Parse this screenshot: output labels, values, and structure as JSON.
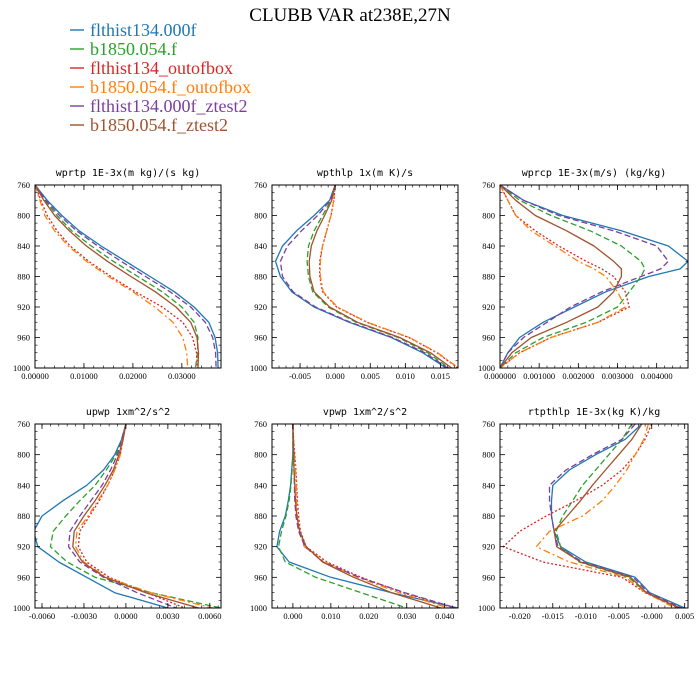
{
  "figure": {
    "title": "CLUBB VAR at238E,27N"
  },
  "legend": [
    {
      "name": "flthist134.000f",
      "color": "#1f77b4",
      "dash": "solid"
    },
    {
      "name": "b1850.054.f",
      "color": "#2ca02c",
      "dash": "dash"
    },
    {
      "name": "flthist134_outofbox",
      "color": "#d62728",
      "dash": "dot"
    },
    {
      "name": "b1850.054.f_outofbox",
      "color": "#ff7f0e",
      "dash": "dashdot"
    },
    {
      "name": "flthist134.000f_ztest2",
      "color": "#7b3f9e",
      "dash": "dash"
    },
    {
      "name": "b1850.054.f_ztest2",
      "color": "#a0522d",
      "dash": "solid"
    }
  ],
  "chart_data": [
    {
      "type": "line",
      "title": "wprtp  1E-3x(m kg)/(s kg)",
      "xlim": [
        0,
        0.038
      ],
      "ylim": [
        760,
        1000
      ],
      "y_reversed": true,
      "xticks": [
        "0.00000",
        "0.01000",
        "0.02000",
        "0.03000"
      ],
      "xtick_values": [
        0,
        0.01,
        0.02,
        0.03
      ],
      "yticks": [
        760,
        800,
        840,
        880,
        920,
        960,
        1000
      ],
      "y": [
        760,
        780,
        800,
        820,
        840,
        860,
        880,
        900,
        920,
        940,
        960,
        980,
        1000
      ],
      "series": [
        {
          "name": "flthist134.000f",
          "values": [
            0,
            0.0025,
            0.0055,
            0.009,
            0.0135,
            0.0185,
            0.0235,
            0.0285,
            0.0325,
            0.0355,
            0.0368,
            0.0373,
            0.0374
          ]
        },
        {
          "name": "b1850.054.f",
          "values": [
            0,
            0.002,
            0.0045,
            0.0075,
            0.0115,
            0.016,
            0.021,
            0.026,
            0.03,
            0.0325,
            0.0333,
            0.0332,
            0.0328
          ]
        },
        {
          "name": "flthist134_outofbox",
          "values": [
            0,
            0.0012,
            0.0025,
            0.0045,
            0.0072,
            0.011,
            0.0155,
            0.0205,
            0.026,
            0.0302,
            0.0322,
            0.033,
            0.0332
          ]
        },
        {
          "name": "b1850.054.f_outofbox",
          "values": [
            0,
            0.001,
            0.002,
            0.004,
            0.0068,
            0.0105,
            0.015,
            0.02,
            0.0245,
            0.0282,
            0.0302,
            0.031,
            0.0312
          ]
        },
        {
          "name": "flthist134.000f_ztest2",
          "values": [
            0,
            0.0022,
            0.005,
            0.0085,
            0.0128,
            0.0176,
            0.0226,
            0.0276,
            0.0318,
            0.0348,
            0.0363,
            0.0369,
            0.037
          ]
        },
        {
          "name": "b1850.054.f_ztest2",
          "values": [
            0,
            0.0018,
            0.004,
            0.007,
            0.0105,
            0.0148,
            0.0196,
            0.0246,
            0.0288,
            0.0318,
            0.0331,
            0.0334,
            0.0333
          ]
        }
      ]
    },
    {
      "type": "line",
      "title": "wpthlp  1x(m K)/s",
      "xlim": [
        -0.009,
        0.0175
      ],
      "ylim": [
        760,
        1000
      ],
      "y_reversed": true,
      "xticks": [
        "-0.005",
        "0.000",
        "0.005",
        "0.010",
        "0.015"
      ],
      "xtick_values": [
        -0.005,
        0,
        0.005,
        0.01,
        0.015
      ],
      "yticks": [
        760,
        800,
        840,
        880,
        920,
        960,
        1000
      ],
      "y": [
        760,
        780,
        800,
        820,
        840,
        860,
        880,
        900,
        920,
        940,
        960,
        980,
        1000
      ],
      "series": [
        {
          "name": "flthist134.000f",
          "values": [
            0,
            -0.0008,
            -0.003,
            -0.0055,
            -0.0075,
            -0.0085,
            -0.0078,
            -0.0062,
            -0.003,
            0.002,
            0.008,
            0.0125,
            0.0158
          ]
        },
        {
          "name": "b1850.054.f",
          "values": [
            0,
            -0.0006,
            -0.0018,
            -0.003,
            -0.0038,
            -0.004,
            -0.0038,
            -0.0032,
            -0.001,
            0.003,
            0.009,
            0.0132,
            0.0162
          ]
        },
        {
          "name": "flthist134_outofbox",
          "values": [
            0,
            -0.0002,
            -0.0006,
            -0.0012,
            -0.0018,
            -0.0022,
            -0.0022,
            -0.0018,
            0.0002,
            0.0045,
            0.0105,
            0.0145,
            0.0175
          ]
        },
        {
          "name": "b1850.054.f_outofbox",
          "values": [
            0,
            -0.0002,
            -0.0006,
            -0.0012,
            -0.0018,
            -0.0021,
            -0.0021,
            -0.0017,
            0.0003,
            0.0046,
            0.0106,
            0.0146,
            0.0176
          ]
        },
        {
          "name": "flthist134.000f_ztest2",
          "values": [
            0,
            -0.0007,
            -0.0025,
            -0.0048,
            -0.0068,
            -0.0078,
            -0.0075,
            -0.006,
            -0.0028,
            0.0022,
            0.0082,
            0.0128,
            0.016
          ]
        },
        {
          "name": "b1850.054.f_ztest2",
          "values": [
            0,
            -0.0005,
            -0.0015,
            -0.0026,
            -0.0034,
            -0.0037,
            -0.0036,
            -0.003,
            -0.0008,
            0.0032,
            0.0092,
            0.0136,
            0.0166
          ]
        }
      ]
    },
    {
      "type": "line",
      "title": "wprcp  1E-3x(m/s) (kg/kg)",
      "xlim": [
        0,
        0.0048
      ],
      "ylim": [
        760,
        1000
      ],
      "y_reversed": true,
      "xticks": [
        "0.000000",
        "0.001000",
        "0.002000",
        "0.003000",
        "0.004000"
      ],
      "xtick_values": [
        0,
        0.001,
        0.002,
        0.003,
        0.004
      ],
      "yticks": [
        760,
        800,
        840,
        880,
        920,
        960,
        1000
      ],
      "y": [
        760,
        780,
        800,
        820,
        840,
        860,
        870,
        880,
        900,
        920,
        940,
        960,
        980,
        1000
      ],
      "series": [
        {
          "name": "flthist134.000f",
          "values": [
            0,
            0.0006,
            0.0016,
            0.0031,
            0.0043,
            0.0048,
            0.0046,
            0.0038,
            0.0027,
            0.0019,
            0.0011,
            0.0005,
            0.0002,
            0
          ]
        },
        {
          "name": "b1850.054.f",
          "values": [
            0,
            0.0005,
            0.0013,
            0.0023,
            0.0031,
            0.0036,
            0.0037,
            0.0036,
            0.0033,
            0.003,
            0.0022,
            0.0011,
            0.0004,
            0
          ]
        },
        {
          "name": "flthist134_outofbox",
          "values": [
            0,
            0.0002,
            0.0004,
            0.0009,
            0.0015,
            0.0022,
            0.0026,
            0.0029,
            0.0032,
            0.0033,
            0.0025,
            0.0013,
            0.0005,
            0
          ]
        },
        {
          "name": "b1850.054.f_outofbox",
          "values": [
            0,
            0.0002,
            0.0004,
            0.0008,
            0.0014,
            0.002,
            0.0024,
            0.0027,
            0.003,
            0.0032,
            0.0025,
            0.0013,
            0.0005,
            0
          ]
        },
        {
          "name": "flthist134.000f_ztest2",
          "values": [
            0,
            0.0006,
            0.0015,
            0.0029,
            0.004,
            0.0043,
            0.0041,
            0.0036,
            0.0026,
            0.0018,
            0.0012,
            0.0006,
            0.0002,
            0
          ]
        },
        {
          "name": "b1850.054.f_ztest2",
          "values": [
            0,
            0.0004,
            0.0009,
            0.0017,
            0.0024,
            0.0029,
            0.0031,
            0.0031,
            0.0029,
            0.0025,
            0.0017,
            0.0008,
            0.0003,
            0
          ]
        }
      ]
    },
    {
      "type": "line",
      "title": "upwp  1xm^2/s^2",
      "xlim": [
        -0.0065,
        0.0068
      ],
      "ylim": [
        760,
        1000
      ],
      "y_reversed": true,
      "xticks": [
        "-0.0060",
        "-0.0030",
        "0.0000",
        "0.0030",
        "0.0060"
      ],
      "xtick_values": [
        -0.006,
        -0.003,
        0,
        0.003,
        0.006
      ],
      "yticks": [
        760,
        800,
        840,
        880,
        920,
        960,
        1000
      ],
      "y": [
        760,
        780,
        800,
        820,
        840,
        860,
        880,
        900,
        920,
        940,
        960,
        980,
        1000
      ],
      "series": [
        {
          "name": "flthist134.000f",
          "values": [
            0,
            -0.0003,
            -0.0008,
            -0.0016,
            -0.0028,
            -0.0045,
            -0.006,
            -0.0066,
            -0.0063,
            -0.0048,
            -0.0028,
            -0.0008,
            0.003
          ]
        },
        {
          "name": "b1850.054.f",
          "values": [
            0,
            -0.0003,
            -0.0007,
            -0.0014,
            -0.0022,
            -0.0033,
            -0.0043,
            -0.0052,
            -0.0054,
            -0.0042,
            -0.0022,
            0.0018,
            0.0068
          ]
        },
        {
          "name": "flthist134_outofbox",
          "values": [
            0,
            -0.0002,
            -0.0004,
            -0.0008,
            -0.0013,
            -0.0019,
            -0.0026,
            -0.0033,
            -0.0034,
            -0.0028,
            -0.0012,
            0.0015,
            0.0042
          ]
        },
        {
          "name": "b1850.054.f_outofbox",
          "values": [
            0,
            -0.0002,
            -0.0004,
            -0.0008,
            -0.0013,
            -0.002,
            -0.0027,
            -0.0035,
            -0.0036,
            -0.003,
            -0.0014,
            0.0018,
            0.0062
          ]
        },
        {
          "name": "flthist134.000f_ztest2",
          "values": [
            0,
            -0.0003,
            -0.0006,
            -0.0011,
            -0.0017,
            -0.0025,
            -0.0033,
            -0.004,
            -0.0041,
            -0.0033,
            -0.0016,
            0.0008,
            0.0036
          ]
        },
        {
          "name": "b1850.054.f_ztest2",
          "values": [
            0,
            -0.0002,
            -0.0005,
            -0.0009,
            -0.0015,
            -0.0022,
            -0.003,
            -0.0037,
            -0.0038,
            -0.0031,
            -0.0015,
            0.0014,
            0.0052
          ]
        }
      ]
    },
    {
      "type": "line",
      "title": "vpwp  1xm^2/s^2",
      "xlim": [
        -0.0055,
        0.0435
      ],
      "ylim": [
        760,
        1000
      ],
      "y_reversed": true,
      "xticks": [
        "0.000",
        "0.010",
        "0.020",
        "0.030",
        "0.040"
      ],
      "xtick_values": [
        0,
        0.01,
        0.02,
        0.03,
        0.04
      ],
      "yticks": [
        760,
        800,
        840,
        880,
        920,
        960,
        1000
      ],
      "y": [
        760,
        780,
        800,
        820,
        840,
        860,
        880,
        900,
        920,
        940,
        960,
        980,
        1000
      ],
      "series": [
        {
          "name": "flthist134.000f",
          "values": [
            0,
            0,
            0,
            -0.0003,
            -0.0006,
            -0.0012,
            -0.002,
            -0.0035,
            -0.0042,
            -0.001,
            0.01,
            0.026,
            0.0435
          ]
        },
        {
          "name": "b1850.054.f",
          "values": [
            0,
            0,
            0,
            -0.0002,
            -0.0005,
            -0.001,
            -0.0018,
            -0.003,
            -0.0038,
            -0.002,
            0.006,
            0.018,
            0.03
          ]
        },
        {
          "name": "flthist134_outofbox",
          "values": [
            0,
            0.0002,
            0.0005,
            0.0008,
            0.001,
            0.0012,
            0.0015,
            0.002,
            0.0035,
            0.009,
            0.018,
            0.029,
            0.0425
          ]
        },
        {
          "name": "b1850.054.f_outofbox",
          "values": [
            0,
            0.0002,
            0.0004,
            0.0007,
            0.0009,
            0.001,
            0.0012,
            0.0018,
            0.003,
            0.0085,
            0.017,
            0.028,
            0.041
          ]
        },
        {
          "name": "flthist134.000f_ztest2",
          "values": [
            0,
            0.0001,
            0.0002,
            0.0003,
            0.0004,
            0.0005,
            0.0008,
            0.0015,
            0.0032,
            0.008,
            0.0175,
            0.0295,
            0.043
          ]
        },
        {
          "name": "b1850.054.f_ztest2",
          "values": [
            0,
            0.0001,
            0.0002,
            0.0003,
            0.0005,
            0.0007,
            0.001,
            0.0018,
            0.0035,
            0.0078,
            0.016,
            0.026,
            0.039
          ]
        }
      ]
    },
    {
      "type": "line",
      "title": "rtpthlp  1E-3x(kg K)/kg",
      "xlim": [
        -0.023,
        0.0055
      ],
      "ylim": [
        760,
        1000
      ],
      "y_reversed": true,
      "xticks": [
        "-0.020",
        "-0.015",
        "-0.010",
        "-0.005",
        "-0.000",
        "0.005"
      ],
      "xtick_values": [
        -0.02,
        -0.015,
        -0.01,
        -0.005,
        0,
        0.005
      ],
      "yticks": [
        760,
        800,
        840,
        880,
        920,
        960,
        1000
      ],
      "y": [
        760,
        780,
        800,
        820,
        840,
        860,
        880,
        900,
        920,
        940,
        960,
        980,
        1000
      ],
      "series": [
        {
          "name": "flthist134.000f",
          "values": [
            -0.0015,
            -0.004,
            -0.0085,
            -0.0125,
            -0.015,
            -0.0152,
            -0.0152,
            -0.0148,
            -0.0138,
            -0.01,
            -0.0025,
            -0.0003,
            0.005
          ]
        },
        {
          "name": "b1850.054.f",
          "values": [
            -0.003,
            -0.0045,
            -0.0065,
            -0.0085,
            -0.0105,
            -0.012,
            -0.0135,
            -0.0145,
            -0.0138,
            -0.011,
            -0.0035,
            -0.0008,
            0.004
          ]
        },
        {
          "name": "flthist134_outofbox",
          "values": [
            0,
            -0.001,
            -0.0025,
            -0.0045,
            -0.0075,
            -0.0115,
            -0.016,
            -0.02,
            -0.0225,
            -0.0165,
            -0.0045,
            -0.001,
            0.004
          ]
        },
        {
          "name": "b1850.054.f_outofbox",
          "values": [
            -0.0005,
            -0.0012,
            -0.0025,
            -0.0038,
            -0.0055,
            -0.0075,
            -0.0105,
            -0.0155,
            -0.0175,
            -0.0125,
            -0.004,
            -0.0009,
            0.0035
          ]
        },
        {
          "name": "flthist134.000f_ztest2",
          "values": [
            -0.0025,
            -0.0045,
            -0.009,
            -0.013,
            -0.0155,
            -0.0155,
            -0.0152,
            -0.0148,
            -0.0142,
            -0.0105,
            -0.0028,
            -0.0005,
            0.0045
          ]
        },
        {
          "name": "b1850.054.f_ztest2",
          "values": [
            -0.0015,
            -0.003,
            -0.005,
            -0.007,
            -0.009,
            -0.0108,
            -0.0128,
            -0.0148,
            -0.0144,
            -0.0108,
            -0.0032,
            -0.0008,
            0.0042
          ]
        }
      ]
    }
  ]
}
